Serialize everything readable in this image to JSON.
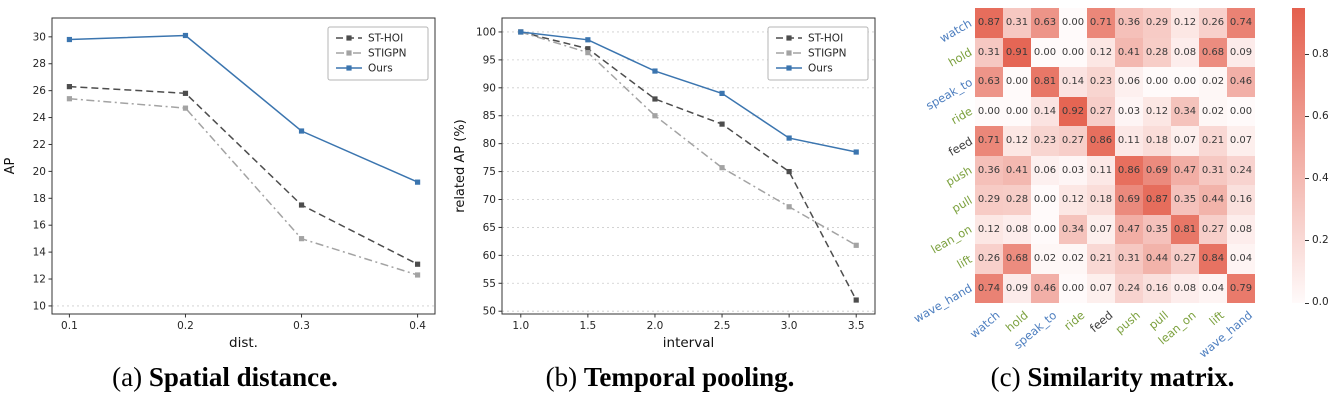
{
  "figure": {
    "captions": {
      "a": {
        "prefix": "(a) ",
        "bold": "Spatial distance."
      },
      "b": {
        "prefix": "(b) ",
        "bold": "Temporal pooling."
      },
      "c": {
        "prefix": "(c) ",
        "bold": "Similarity matrix."
      }
    }
  },
  "chart_data": [
    {
      "id": "spatial",
      "type": "line",
      "title": "",
      "xlabel": "dist.",
      "ylabel": "AP",
      "x": [
        0.1,
        0.2,
        0.3,
        0.4
      ],
      "xticks": [
        "0.1",
        "0.2",
        "0.3",
        "0.4"
      ],
      "xlim": [
        0.085,
        0.415
      ],
      "ylim": [
        9.4,
        31.4
      ],
      "yticks": [
        10,
        12,
        14,
        16,
        18,
        20,
        22,
        24,
        26,
        28,
        30
      ],
      "grid_y": [
        10
      ],
      "legend_position": "top-right",
      "series": [
        {
          "name": "ST-HOI",
          "color": "#4d4d4d",
          "style": "dashed",
          "marker": "square",
          "values": [
            26.3,
            25.8,
            17.5,
            13.1
          ]
        },
        {
          "name": "STIGPN",
          "color": "#a3a3a3",
          "style": "dashdot",
          "marker": "square",
          "values": [
            25.4,
            24.7,
            15.0,
            12.3
          ]
        },
        {
          "name": "Ours",
          "color": "#3b75af",
          "style": "solid",
          "marker": "square",
          "values": [
            29.8,
            30.1,
            23.0,
            19.2
          ]
        }
      ]
    },
    {
      "id": "temporal",
      "type": "line",
      "title": "",
      "xlabel": "interval",
      "ylabel": "related AP (%)",
      "x": [
        1.0,
        1.5,
        2.0,
        2.5,
        3.0,
        3.5
      ],
      "xticks": [
        "1.0",
        "1.5",
        "2.0",
        "2.5",
        "3.0",
        "3.5"
      ],
      "xlim": [
        0.86,
        3.64
      ],
      "ylim": [
        49.5,
        102.5
      ],
      "yticks": [
        50,
        55,
        60,
        65,
        70,
        75,
        80,
        85,
        90,
        95,
        100
      ],
      "grid_y": [
        50,
        55,
        60,
        65,
        70,
        75,
        80,
        85,
        90,
        95,
        100
      ],
      "legend_position": "top-right",
      "series": [
        {
          "name": "ST-HOI",
          "color": "#4d4d4d",
          "style": "dashed",
          "marker": "square",
          "values": [
            100,
            97.0,
            88.0,
            83.5,
            75.0,
            52.0
          ]
        },
        {
          "name": "STIGPN",
          "color": "#a3a3a3",
          "style": "dashdot",
          "marker": "square",
          "values": [
            100,
            96.3,
            85.0,
            75.7,
            68.7,
            61.8
          ]
        },
        {
          "name": "Ours",
          "color": "#3b75af",
          "style": "solid",
          "marker": "square",
          "values": [
            100,
            98.6,
            93.0,
            89.0,
            81.0,
            78.5
          ]
        }
      ]
    },
    {
      "id": "similarity",
      "type": "heatmap",
      "labels": [
        "watch",
        "hold",
        "speak_to",
        "ride",
        "feed",
        "push",
        "pull",
        "lean_on",
        "lift",
        "wave_hand"
      ],
      "label_colors": [
        "#4d7ebf",
        "#7ca13e",
        "#4d7ebf",
        "#7ca13e",
        "#3d3d3d",
        "#7ca13e",
        "#7ca13e",
        "#7ca13e",
        "#7ca13e",
        "#4d7ebf"
      ],
      "matrix": [
        [
          0.87,
          0.31,
          0.63,
          0.0,
          0.71,
          0.36,
          0.29,
          0.12,
          0.26,
          0.74
        ],
        [
          0.31,
          0.91,
          0.0,
          0.0,
          0.12,
          0.41,
          0.28,
          0.08,
          0.68,
          0.09
        ],
        [
          0.63,
          0.0,
          0.81,
          0.14,
          0.23,
          0.06,
          0.0,
          0.0,
          0.02,
          0.46
        ],
        [
          0.0,
          0.0,
          0.14,
          0.92,
          0.27,
          0.03,
          0.12,
          0.34,
          0.02,
          0.0
        ],
        [
          0.71,
          0.12,
          0.23,
          0.27,
          0.86,
          0.11,
          0.18,
          0.07,
          0.21,
          0.07
        ],
        [
          0.36,
          0.41,
          0.06,
          0.03,
          0.11,
          0.86,
          0.69,
          0.47,
          0.31,
          0.24
        ],
        [
          0.29,
          0.28,
          0.0,
          0.12,
          0.18,
          0.69,
          0.87,
          0.35,
          0.44,
          0.16
        ],
        [
          0.12,
          0.08,
          0.0,
          0.34,
          0.07,
          0.47,
          0.35,
          0.81,
          0.27,
          0.08
        ],
        [
          0.26,
          0.68,
          0.02,
          0.02,
          0.21,
          0.31,
          0.44,
          0.27,
          0.84,
          0.04
        ],
        [
          0.74,
          0.09,
          0.46,
          0.0,
          0.07,
          0.24,
          0.16,
          0.08,
          0.04,
          0.79
        ]
      ],
      "colorbar": {
        "ticks": [
          "0.0",
          "0.2",
          "0.4",
          "0.6",
          "0.8"
        ],
        "tick_values": [
          0.0,
          0.2,
          0.4,
          0.6,
          0.8
        ],
        "vmin": 0,
        "vmax": 0.95,
        "color_low": "#fffafa",
        "color_high": "#e4604e"
      }
    }
  ]
}
